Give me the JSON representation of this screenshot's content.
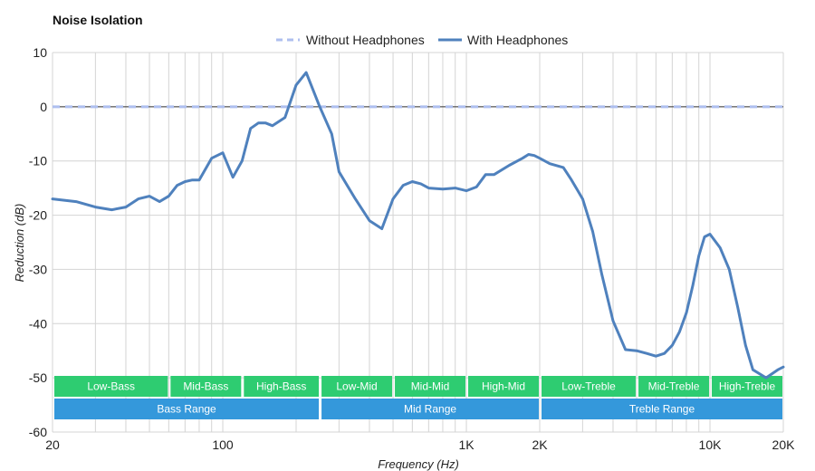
{
  "chart_data": {
    "type": "line",
    "title": "Noise Isolation",
    "xlabel": "Frequency (Hz)",
    "ylabel": "Reduction (dB)",
    "x_scale": "log",
    "xlim": [
      20,
      20000
    ],
    "ylim": [
      -60,
      10
    ],
    "y_ticks": [
      10,
      0,
      -10,
      -20,
      -30,
      -40,
      -50,
      -60
    ],
    "x_ticks": [
      {
        "value": 20,
        "label": "20"
      },
      {
        "value": 100,
        "label": "100"
      },
      {
        "value": 1000,
        "label": "1K"
      },
      {
        "value": 2000,
        "label": "2K"
      },
      {
        "value": 10000,
        "label": "10K"
      },
      {
        "value": 20000,
        "label": "20K"
      }
    ],
    "minor_gridlines": [
      20,
      30,
      40,
      50,
      60,
      70,
      80,
      90,
      100,
      200,
      300,
      400,
      500,
      600,
      700,
      800,
      900,
      1000,
      2000,
      3000,
      4000,
      5000,
      6000,
      7000,
      8000,
      9000,
      10000,
      20000
    ],
    "grid": true,
    "legend": "top-center",
    "series": [
      {
        "name": "Without Headphones",
        "style": "dashed",
        "color": "#aebfef",
        "x": [
          20,
          20000
        ],
        "y": [
          0,
          0
        ]
      },
      {
        "name": "With Headphones",
        "style": "solid",
        "color": "#4f81bd",
        "x": [
          20,
          25,
          30,
          35,
          40,
          45,
          50,
          55,
          60,
          65,
          70,
          75,
          80,
          90,
          100,
          110,
          120,
          130,
          140,
          150,
          160,
          180,
          200,
          220,
          250,
          280,
          300,
          350,
          400,
          450,
          500,
          550,
          600,
          650,
          700,
          800,
          900,
          1000,
          1100,
          1200,
          1300,
          1500,
          1700,
          1800,
          1900,
          2000,
          2200,
          2500,
          2700,
          3000,
          3300,
          3600,
          4000,
          4500,
          5000,
          5500,
          6000,
          6500,
          7000,
          7500,
          8000,
          8500,
          9000,
          9500,
          10000,
          11000,
          12000,
          13000,
          14000,
          15000,
          17000,
          19000,
          20000
        ],
        "y": [
          -17,
          -17.5,
          -18.5,
          -19,
          -18.5,
          -17,
          -16.5,
          -17.5,
          -16.5,
          -14.5,
          -13.8,
          -13.5,
          -13.5,
          -9.5,
          -8.5,
          -13,
          -10,
          -4,
          -3,
          -3,
          -3.5,
          -2,
          4,
          6.3,
          0,
          -5,
          -12,
          -17,
          -21,
          -22.5,
          -17,
          -14.5,
          -13.8,
          -14.2,
          -15,
          -15.2,
          -15,
          -15.5,
          -14.8,
          -12.5,
          -12.5,
          -10.8,
          -9.5,
          -8.8,
          -9,
          -9.5,
          -10.5,
          -11.2,
          -13.5,
          -17,
          -23,
          -31,
          -39.5,
          -44.8,
          -45,
          -45.5,
          -46,
          -45.5,
          -44,
          -41.5,
          -38,
          -33,
          -27.5,
          -24,
          -23.5,
          -26,
          -30,
          -37,
          -44,
          -48.5,
          -50,
          -48.5,
          -48
        ]
      }
    ],
    "bands": {
      "row1": [
        {
          "label": "Low-Bass",
          "from": 20,
          "to": 60
        },
        {
          "label": "Mid-Bass",
          "from": 60,
          "to": 120
        },
        {
          "label": "High-Bass",
          "from": 120,
          "to": 250
        },
        {
          "label": "Low-Mid",
          "from": 250,
          "to": 500
        },
        {
          "label": "Mid-Mid",
          "from": 500,
          "to": 1000
        },
        {
          "label": "High-Mid",
          "from": 1000,
          "to": 2000
        },
        {
          "label": "Low-Treble",
          "from": 2000,
          "to": 5000
        },
        {
          "label": "Mid-Treble",
          "from": 5000,
          "to": 10000
        },
        {
          "label": "High-Treble",
          "from": 10000,
          "to": 20000
        }
      ],
      "row2": [
        {
          "label": "Bass Range",
          "from": 20,
          "to": 250
        },
        {
          "label": "Mid Range",
          "from": 250,
          "to": 2000
        },
        {
          "label": "Treble Range",
          "from": 2000,
          "to": 20000
        }
      ],
      "row1_color": "#2ecc71",
      "row2_color": "#3498db"
    }
  }
}
